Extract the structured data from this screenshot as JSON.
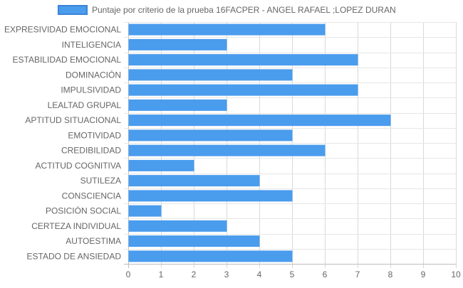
{
  "chart_data": {
    "type": "bar",
    "orientation": "horizontal",
    "categories": [
      "EXPRESIVIDAD EMOCIONAL",
      "INTELIGENCIA",
      "ESTABILIDAD EMOCIONAL",
      "DOMINACIÓN",
      "IMPULSIVIDAD",
      "LEALTAD GRUPAL",
      "APTITUD SITUACIONAL",
      "EMOTIVIDAD",
      "CREDIBILIDAD",
      "ACTITUD COGNITIVA",
      "SUTILEZA",
      "CONSCIENCIA",
      "POSICIÓN SOCIAL",
      "CERTEZA INDIVIDUAL",
      "AUTOESTIMA",
      "ESTADO DE ANSIEDAD"
    ],
    "series": [
      {
        "name": "Puntaje por criterio de la prueba 16FACPER - ANGEL RAFAEL ;LOPEZ DURAN",
        "values": [
          6,
          3,
          7,
          5,
          7,
          3,
          8,
          5,
          6,
          2,
          4,
          5,
          1,
          3,
          4,
          5
        ],
        "color": "#4a9ced",
        "border_color": "#3a84d6"
      }
    ],
    "xlim": [
      0,
      10
    ],
    "x_ticks": [
      0,
      1,
      2,
      3,
      4,
      5,
      6,
      7,
      8,
      9,
      10
    ],
    "grid": true,
    "legend_position": "top-center"
  }
}
